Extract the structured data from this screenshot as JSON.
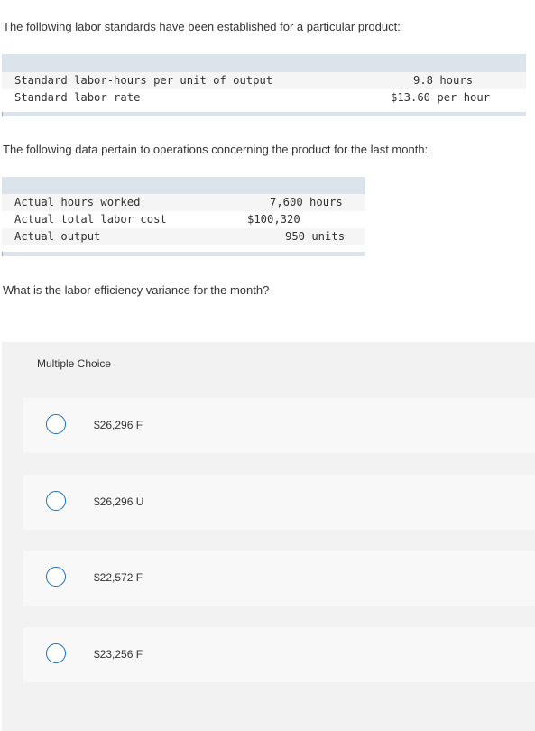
{
  "intro": "The following labor standards have been established for a particular product:",
  "standards": {
    "rows": [
      {
        "label": "Standard labor-hours per unit of output",
        "value": "9.8 hours"
      },
      {
        "label": "Standard labor rate",
        "value": "$13.60 per hour"
      }
    ]
  },
  "data_intro": "The following data pertain to operations concerning the product for the last month:",
  "actuals": {
    "rows": [
      {
        "label": "Actual hours worked",
        "value": "7,600 hours"
      },
      {
        "label": "Actual total labor cost",
        "value": "$100,320"
      },
      {
        "label": "Actual output",
        "value": "950 units"
      }
    ]
  },
  "question": "What is the labor efficiency variance for the month?",
  "multiple_choice": {
    "label": "Multiple Choice",
    "options": [
      "$26,296 F",
      "$26,296 U",
      "$22,572 F",
      "$23,256 F"
    ],
    "selected": null
  }
}
